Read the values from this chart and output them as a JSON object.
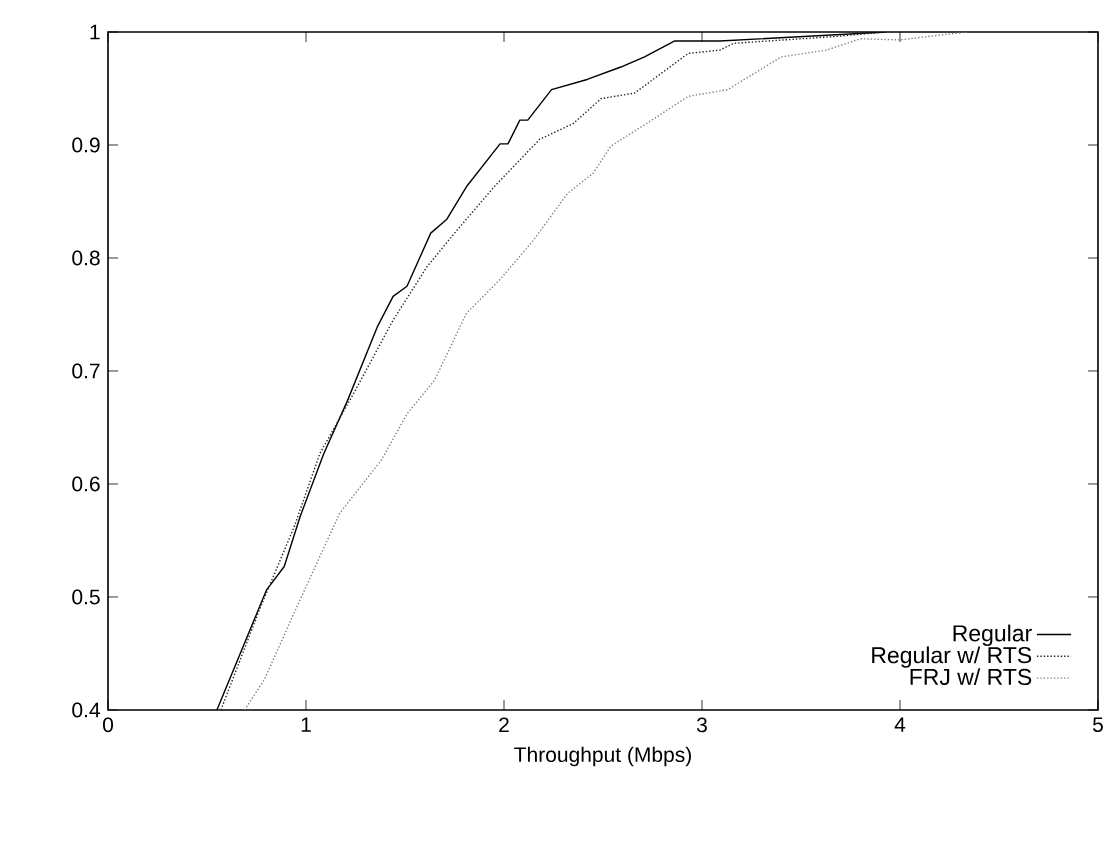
{
  "chart_data": {
    "type": "line",
    "xlabel": "Throughput (Mbps)",
    "xlim": [
      0,
      5
    ],
    "ylim": [
      0.4,
      1
    ],
    "xticks": [
      0,
      1,
      2,
      3,
      4,
      5
    ],
    "yticks": [
      0.4,
      0.5,
      0.6,
      0.7,
      0.8,
      0.9,
      1
    ],
    "grid": false,
    "legend": "bottom right",
    "marker": "none",
    "series": [
      {
        "name": "Regular",
        "color": "#000000",
        "line_style": "solid",
        "x": [
          0.55,
          0.8,
          0.89,
          0.97,
          1.09,
          1.21,
          1.36,
          1.44,
          1.51,
          1.63,
          1.71,
          1.81,
          1.98,
          2.02,
          2.08,
          2.12,
          2.24,
          2.42,
          2.59,
          2.71,
          2.86,
          3.09,
          3.93
        ],
        "values": [
          0.4,
          0.506,
          0.527,
          0.571,
          0.627,
          0.674,
          0.739,
          0.766,
          0.775,
          0.822,
          0.834,
          0.863,
          0.901,
          0.901,
          0.922,
          0.922,
          0.949,
          0.958,
          0.969,
          0.978,
          0.992,
          0.992,
          1.0
        ]
      },
      {
        "name": "Regular w/ RTS",
        "color": "#222222",
        "line_style": "dotted",
        "x": [
          0.57,
          0.77,
          0.94,
          1.07,
          1.24,
          1.44,
          1.61,
          1.75,
          1.95,
          2.18,
          2.35,
          2.49,
          2.66,
          2.93,
          3.09,
          3.16,
          3.67,
          3.93
        ],
        "values": [
          0.4,
          0.491,
          0.562,
          0.627,
          0.68,
          0.745,
          0.792,
          0.822,
          0.863,
          0.905,
          0.919,
          0.941,
          0.946,
          0.981,
          0.984,
          0.99,
          0.996,
          1.0
        ]
      },
      {
        "name": "FRJ w/ RTS",
        "color": "#808080",
        "line_style": "dotted",
        "x": [
          0.69,
          0.79,
          0.94,
          1.17,
          1.38,
          1.51,
          1.65,
          1.81,
          1.98,
          2.15,
          2.32,
          2.45,
          2.54,
          2.72,
          2.93,
          3.13,
          3.4,
          3.63,
          3.8,
          4.0,
          4.14,
          4.34
        ],
        "values": [
          0.4,
          0.427,
          0.486,
          0.574,
          0.621,
          0.662,
          0.692,
          0.751,
          0.781,
          0.816,
          0.857,
          0.875,
          0.899,
          0.919,
          0.943,
          0.949,
          0.978,
          0.984,
          0.994,
          0.993,
          0.996,
          1.0
        ]
      }
    ]
  }
}
